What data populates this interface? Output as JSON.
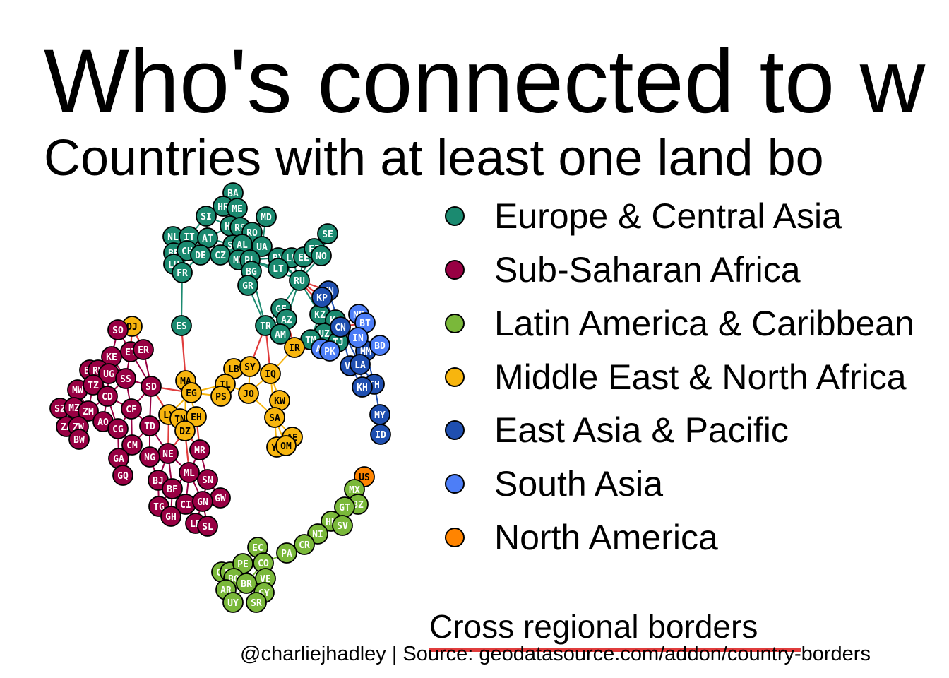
{
  "title": "Who's connected to w",
  "subtitle": "Countries with at least one land bo",
  "legend": [
    {
      "label": "Europe & Central Asia",
      "color": "#1b8a70"
    },
    {
      "label": "Sub-Saharan Africa",
      "color": "#980043"
    },
    {
      "label": "Latin America & Caribbean",
      "color": "#7ab83a"
    },
    {
      "label": "Middle East & North Africa",
      "color": "#f7b50e"
    },
    {
      "label": "East Asia & Pacific",
      "color": "#1f4fb0"
    },
    {
      "label": "South Asia",
      "color": "#4d7ef7"
    },
    {
      "label": "North America",
      "color": "#ff8400"
    }
  ],
  "edge_legend": {
    "label": "Cross regional borders",
    "color": "#e03c3c"
  },
  "caption": "@charliejhadley | Source: geodatasource.com/addon/country-borders",
  "within_edge_colors": {
    "eca": "#1b8a70",
    "ssa": "#980043",
    "lac": "#7ab83a",
    "mena": "#f7b50e",
    "eap": "#1f4fb0",
    "sa": "#4d7ef7",
    "na": "#ff8400"
  },
  "region_colors": {
    "eca": "#1b8a70",
    "ssa": "#980043",
    "lac": "#7ab83a",
    "mena": "#f7b50e",
    "eap": "#1f4fb0",
    "sa": "#4d7ef7",
    "na": "#ff8400"
  },
  "nodes": [
    {
      "id": "BA",
      "r": "eca"
    },
    {
      "id": "HR",
      "r": "eca"
    },
    {
      "id": "ME",
      "r": "eca"
    },
    {
      "id": "MD",
      "r": "eca"
    },
    {
      "id": "SI",
      "r": "eca"
    },
    {
      "id": "HU",
      "r": "eca"
    },
    {
      "id": "RS",
      "r": "eca"
    },
    {
      "id": "RO",
      "r": "eca"
    },
    {
      "id": "NL",
      "r": "eca"
    },
    {
      "id": "IT",
      "r": "eca"
    },
    {
      "id": "AT",
      "r": "eca"
    },
    {
      "id": "SK",
      "r": "eca"
    },
    {
      "id": "AL",
      "r": "eca"
    },
    {
      "id": "UA",
      "r": "eca"
    },
    {
      "id": "SE",
      "r": "eca"
    },
    {
      "id": "BE",
      "r": "eca"
    },
    {
      "id": "CH",
      "r": "eca"
    },
    {
      "id": "DE",
      "r": "eca"
    },
    {
      "id": "CZ",
      "r": "eca"
    },
    {
      "id": "MK",
      "r": "eca"
    },
    {
      "id": "PL",
      "r": "eca"
    },
    {
      "id": "BY",
      "r": "eca"
    },
    {
      "id": "LV",
      "r": "eca"
    },
    {
      "id": "EE",
      "r": "eca"
    },
    {
      "id": "FI",
      "r": "eca"
    },
    {
      "id": "NO",
      "r": "eca"
    },
    {
      "id": "LU",
      "r": "eca"
    },
    {
      "id": "FR",
      "r": "eca"
    },
    {
      "id": "BG",
      "r": "eca"
    },
    {
      "id": "LT",
      "r": "eca"
    },
    {
      "id": "GR",
      "r": "eca"
    },
    {
      "id": "RU",
      "r": "eca"
    },
    {
      "id": "ES",
      "r": "eca"
    },
    {
      "id": "GE",
      "r": "eca"
    },
    {
      "id": "AZ",
      "r": "eca"
    },
    {
      "id": "TR",
      "r": "eca"
    },
    {
      "id": "AM",
      "r": "eca"
    },
    {
      "id": "KZ",
      "r": "eca"
    },
    {
      "id": "KG",
      "r": "eca"
    },
    {
      "id": "UZ",
      "r": "eca"
    },
    {
      "id": "TJ",
      "r": "eca"
    },
    {
      "id": "TM",
      "r": "eca"
    },
    {
      "id": "MN",
      "r": "eap"
    },
    {
      "id": "KP",
      "r": "eap"
    },
    {
      "id": "CN",
      "r": "eap"
    },
    {
      "id": "MM",
      "r": "eap"
    },
    {
      "id": "VN",
      "r": "eap"
    },
    {
      "id": "LA",
      "r": "eap"
    },
    {
      "id": "TH",
      "r": "eap"
    },
    {
      "id": "KH",
      "r": "eap"
    },
    {
      "id": "MY",
      "r": "eap"
    },
    {
      "id": "ID",
      "r": "eap"
    },
    {
      "id": "NP",
      "r": "sa"
    },
    {
      "id": "BT",
      "r": "sa"
    },
    {
      "id": "IN",
      "r": "sa"
    },
    {
      "id": "BD",
      "r": "sa"
    },
    {
      "id": "AF",
      "r": "sa"
    },
    {
      "id": "PK",
      "r": "sa"
    },
    {
      "id": "IR",
      "r": "mena"
    },
    {
      "id": "DJ",
      "r": "mena"
    },
    {
      "id": "LB",
      "r": "mena"
    },
    {
      "id": "SY",
      "r": "mena"
    },
    {
      "id": "IQ",
      "r": "mena"
    },
    {
      "id": "MA",
      "r": "mena"
    },
    {
      "id": "EG",
      "r": "mena"
    },
    {
      "id": "IL",
      "r": "mena"
    },
    {
      "id": "PS",
      "r": "mena"
    },
    {
      "id": "JO",
      "r": "mena"
    },
    {
      "id": "KW",
      "r": "mena"
    },
    {
      "id": "LY",
      "r": "mena"
    },
    {
      "id": "TN",
      "r": "mena"
    },
    {
      "id": "EH",
      "r": "mena"
    },
    {
      "id": "DZ",
      "r": "mena"
    },
    {
      "id": "SA",
      "r": "mena"
    },
    {
      "id": "AE",
      "r": "mena"
    },
    {
      "id": "YE",
      "r": "mena"
    },
    {
      "id": "OM",
      "r": "mena"
    },
    {
      "id": "SO",
      "r": "ssa"
    },
    {
      "id": "ET",
      "r": "ssa"
    },
    {
      "id": "ER",
      "r": "ssa"
    },
    {
      "id": "KE",
      "r": "ssa"
    },
    {
      "id": "BI",
      "r": "ssa"
    },
    {
      "id": "RW",
      "r": "ssa"
    },
    {
      "id": "UG",
      "r": "ssa"
    },
    {
      "id": "SS",
      "r": "ssa"
    },
    {
      "id": "SD",
      "r": "ssa"
    },
    {
      "id": "MW",
      "r": "ssa"
    },
    {
      "id": "TZ",
      "r": "ssa"
    },
    {
      "id": "CD",
      "r": "ssa"
    },
    {
      "id": "SZ",
      "r": "ssa"
    },
    {
      "id": "MZ",
      "r": "ssa"
    },
    {
      "id": "ZM",
      "r": "ssa"
    },
    {
      "id": "CF",
      "r": "ssa"
    },
    {
      "id": "ZA",
      "r": "ssa"
    },
    {
      "id": "ZW",
      "r": "ssa"
    },
    {
      "id": "AO",
      "r": "ssa"
    },
    {
      "id": "CG",
      "r": "ssa"
    },
    {
      "id": "TD",
      "r": "ssa"
    },
    {
      "id": "BW",
      "r": "ssa"
    },
    {
      "id": "CM",
      "r": "ssa"
    },
    {
      "id": "NE",
      "r": "ssa"
    },
    {
      "id": "MR",
      "r": "ssa"
    },
    {
      "id": "GA",
      "r": "ssa"
    },
    {
      "id": "NG",
      "r": "ssa"
    },
    {
      "id": "ML",
      "r": "ssa"
    },
    {
      "id": "GQ",
      "r": "ssa"
    },
    {
      "id": "SN",
      "r": "ssa"
    },
    {
      "id": "BJ",
      "r": "ssa"
    },
    {
      "id": "BF",
      "r": "ssa"
    },
    {
      "id": "GW",
      "r": "ssa"
    },
    {
      "id": "TG",
      "r": "ssa"
    },
    {
      "id": "CI",
      "r": "ssa"
    },
    {
      "id": "GN",
      "r": "ssa"
    },
    {
      "id": "GH",
      "r": "ssa"
    },
    {
      "id": "LR",
      "r": "ssa"
    },
    {
      "id": "SL",
      "r": "ssa"
    },
    {
      "id": "US",
      "r": "na"
    },
    {
      "id": "MX",
      "r": "lac"
    },
    {
      "id": "BZ",
      "r": "lac"
    },
    {
      "id": "GT",
      "r": "lac"
    },
    {
      "id": "HN",
      "r": "lac"
    },
    {
      "id": "SV",
      "r": "lac"
    },
    {
      "id": "NI",
      "r": "lac"
    },
    {
      "id": "CR",
      "r": "lac"
    },
    {
      "id": "PA",
      "r": "lac"
    },
    {
      "id": "EC",
      "r": "lac"
    },
    {
      "id": "CL",
      "r": "lac"
    },
    {
      "id": "PY",
      "r": "lac"
    },
    {
      "id": "PE",
      "r": "lac"
    },
    {
      "id": "CO",
      "r": "lac"
    },
    {
      "id": "BO",
      "r": "lac"
    },
    {
      "id": "VE",
      "r": "lac"
    },
    {
      "id": "AR",
      "r": "lac"
    },
    {
      "id": "BR",
      "r": "lac"
    },
    {
      "id": "GY",
      "r": "lac"
    },
    {
      "id": "UY",
      "r": "lac"
    },
    {
      "id": "SR",
      "r": "lac"
    }
  ],
  "edges": [
    [
      "BA",
      "HR"
    ],
    [
      "BA",
      "ME"
    ],
    [
      "HR",
      "ME"
    ],
    [
      "HR",
      "SI"
    ],
    [
      "HR",
      "HU"
    ],
    [
      "HR",
      "RS"
    ],
    [
      "ME",
      "RS"
    ],
    [
      "ME",
      "AL"
    ],
    [
      "SI",
      "IT"
    ],
    [
      "SI",
      "AT"
    ],
    [
      "SI",
      "HU"
    ],
    [
      "HU",
      "AT"
    ],
    [
      "HU",
      "SK"
    ],
    [
      "HU",
      "RO"
    ],
    [
      "HU",
      "RS"
    ],
    [
      "HU",
      "UA"
    ],
    [
      "RS",
      "RO"
    ],
    [
      "RS",
      "BG"
    ],
    [
      "RS",
      "MK"
    ],
    [
      "RO",
      "MD"
    ],
    [
      "RO",
      "UA"
    ],
    [
      "RO",
      "BG"
    ],
    [
      "MD",
      "UA"
    ],
    [
      "NL",
      "BE"
    ],
    [
      "NL",
      "DE"
    ],
    [
      "IT",
      "CH"
    ],
    [
      "IT",
      "AT"
    ],
    [
      "IT",
      "FR"
    ],
    [
      "AT",
      "DE"
    ],
    [
      "AT",
      "CH"
    ],
    [
      "AT",
      "CZ"
    ],
    [
      "AT",
      "SK"
    ],
    [
      "SK",
      "CZ"
    ],
    [
      "SK",
      "PL"
    ],
    [
      "SK",
      "UA"
    ],
    [
      "AL",
      "MK"
    ],
    [
      "AL",
      "GR"
    ],
    [
      "UA",
      "PL"
    ],
    [
      "UA",
      "BY"
    ],
    [
      "UA",
      "RU"
    ],
    [
      "SE",
      "FI"
    ],
    [
      "SE",
      "NO"
    ],
    [
      "BE",
      "DE"
    ],
    [
      "BE",
      "FR"
    ],
    [
      "BE",
      "LU"
    ],
    [
      "CH",
      "DE"
    ],
    [
      "CH",
      "FR"
    ],
    [
      "DE",
      "CZ"
    ],
    [
      "DE",
      "PL"
    ],
    [
      "DE",
      "FR"
    ],
    [
      "DE",
      "LU"
    ],
    [
      "CZ",
      "PL"
    ],
    [
      "MK",
      "BG"
    ],
    [
      "MK",
      "GR"
    ],
    [
      "PL",
      "BY"
    ],
    [
      "PL",
      "LT"
    ],
    [
      "PL",
      "RU"
    ],
    [
      "BY",
      "LV"
    ],
    [
      "BY",
      "LT"
    ],
    [
      "BY",
      "RU"
    ],
    [
      "LV",
      "EE"
    ],
    [
      "LV",
      "LT"
    ],
    [
      "LV",
      "RU"
    ],
    [
      "EE",
      "RU"
    ],
    [
      "FI",
      "NO"
    ],
    [
      "FI",
      "RU"
    ],
    [
      "NO",
      "RU"
    ],
    [
      "LU",
      "FR"
    ],
    [
      "FR",
      "ES"
    ],
    [
      "BG",
      "GR"
    ],
    [
      "BG",
      "TR"
    ],
    [
      "GR",
      "TR"
    ],
    [
      "RU",
      "GE"
    ],
    [
      "RU",
      "AZ"
    ],
    [
      "RU",
      "KZ"
    ],
    [
      "RU",
      "MN"
    ],
    [
      "RU",
      "KP"
    ],
    [
      "RU",
      "CN"
    ],
    [
      "GE",
      "AZ"
    ],
    [
      "GE",
      "TR"
    ],
    [
      "GE",
      "AM"
    ],
    [
      "AZ",
      "AM"
    ],
    [
      "AZ",
      "TR"
    ],
    [
      "AZ",
      "IR"
    ],
    [
      "TR",
      "AM"
    ],
    [
      "TR",
      "IR"
    ],
    [
      "TR",
      "SY"
    ],
    [
      "TR",
      "IQ"
    ],
    [
      "AM",
      "IR"
    ],
    [
      "KZ",
      "KG"
    ],
    [
      "KZ",
      "UZ"
    ],
    [
      "KZ",
      "TM"
    ],
    [
      "KZ",
      "CN"
    ],
    [
      "KG",
      "UZ"
    ],
    [
      "KG",
      "TJ"
    ],
    [
      "KG",
      "CN"
    ],
    [
      "UZ",
      "TJ"
    ],
    [
      "UZ",
      "TM"
    ],
    [
      "UZ",
      "AF"
    ],
    [
      "TJ",
      "AF"
    ],
    [
      "TJ",
      "CN"
    ],
    [
      "TM",
      "AF"
    ],
    [
      "TM",
      "IR"
    ],
    [
      "MN",
      "CN"
    ],
    [
      "KP",
      "CN"
    ],
    [
      "CN",
      "NP"
    ],
    [
      "CN",
      "BT"
    ],
    [
      "CN",
      "IN"
    ],
    [
      "CN",
      "MM"
    ],
    [
      "CN",
      "VN"
    ],
    [
      "CN",
      "LA"
    ],
    [
      "CN",
      "AF"
    ],
    [
      "CN",
      "PK"
    ],
    [
      "NP",
      "IN"
    ],
    [
      "BT",
      "IN"
    ],
    [
      "IN",
      "BD"
    ],
    [
      "IN",
      "MM"
    ],
    [
      "IN",
      "PK"
    ],
    [
      "BD",
      "MM"
    ],
    [
      "MM",
      "LA"
    ],
    [
      "MM",
      "TH"
    ],
    [
      "VN",
      "LA"
    ],
    [
      "VN",
      "KH"
    ],
    [
      "LA",
      "TH"
    ],
    [
      "LA",
      "KH"
    ],
    [
      "TH",
      "KH"
    ],
    [
      "TH",
      "MY"
    ],
    [
      "MY",
      "ID"
    ],
    [
      "AF",
      "PK"
    ],
    [
      "AF",
      "IR"
    ],
    [
      "PK",
      "IR"
    ],
    [
      "IR",
      "IQ"
    ],
    [
      "ES",
      "MA"
    ],
    [
      "MA",
      "DZ"
    ],
    [
      "MA",
      "EH"
    ],
    [
      "EG",
      "IL"
    ],
    [
      "EG",
      "PS"
    ],
    [
      "EG",
      "LY"
    ],
    [
      "EG",
      "SD"
    ],
    [
      "LB",
      "SY"
    ],
    [
      "LB",
      "IL"
    ],
    [
      "SY",
      "IQ"
    ],
    [
      "SY",
      "JO"
    ],
    [
      "SY",
      "IL"
    ],
    [
      "IL",
      "JO"
    ],
    [
      "IL",
      "PS"
    ],
    [
      "JO",
      "IQ"
    ],
    [
      "JO",
      "SA"
    ],
    [
      "IQ",
      "KW"
    ],
    [
      "IQ",
      "SA"
    ],
    [
      "KW",
      "SA"
    ],
    [
      "SA",
      "YE"
    ],
    [
      "SA",
      "OM"
    ],
    [
      "SA",
      "AE"
    ],
    [
      "YE",
      "OM"
    ],
    [
      "AE",
      "OM"
    ],
    [
      "LY",
      "TN"
    ],
    [
      "LY",
      "DZ"
    ],
    [
      "LY",
      "TD"
    ],
    [
      "LY",
      "NE"
    ],
    [
      "LY",
      "SD"
    ],
    [
      "TN",
      "DZ"
    ],
    [
      "DZ",
      "EH"
    ],
    [
      "DZ",
      "NE"
    ],
    [
      "DZ",
      "ML"
    ],
    [
      "DZ",
      "MR"
    ],
    [
      "EH",
      "MR"
    ],
    [
      "DJ",
      "SO"
    ],
    [
      "DJ",
      "ET"
    ],
    [
      "DJ",
      "ER"
    ],
    [
      "SO",
      "ET"
    ],
    [
      "SO",
      "KE"
    ],
    [
      "ET",
      "ER"
    ],
    [
      "ET",
      "KE"
    ],
    [
      "ET",
      "SS"
    ],
    [
      "ET",
      "SD"
    ],
    [
      "ER",
      "SD"
    ],
    [
      "KE",
      "UG"
    ],
    [
      "KE",
      "SS"
    ],
    [
      "KE",
      "TZ"
    ],
    [
      "BI",
      "RW"
    ],
    [
      "BI",
      "TZ"
    ],
    [
      "BI",
      "CD"
    ],
    [
      "RW",
      "UG"
    ],
    [
      "RW",
      "TZ"
    ],
    [
      "RW",
      "CD"
    ],
    [
      "UG",
      "SS"
    ],
    [
      "UG",
      "TZ"
    ],
    [
      "UG",
      "CD"
    ],
    [
      "SS",
      "SD"
    ],
    [
      "SS",
      "CD"
    ],
    [
      "SS",
      "CF"
    ],
    [
      "SD",
      "CF"
    ],
    [
      "SD",
      "TD"
    ],
    [
      "MW",
      "TZ"
    ],
    [
      "MW",
      "MZ"
    ],
    [
      "MW",
      "ZM"
    ],
    [
      "TZ",
      "MZ"
    ],
    [
      "TZ",
      "ZM"
    ],
    [
      "TZ",
      "CD"
    ],
    [
      "CD",
      "ZM"
    ],
    [
      "CD",
      "AO"
    ],
    [
      "CD",
      "CG"
    ],
    [
      "CD",
      "CF"
    ],
    [
      "SZ",
      "MZ"
    ],
    [
      "SZ",
      "ZA"
    ],
    [
      "MZ",
      "ZA"
    ],
    [
      "MZ",
      "ZW"
    ],
    [
      "MZ",
      "ZM"
    ],
    [
      "ZM",
      "ZW"
    ],
    [
      "ZM",
      "AO"
    ],
    [
      "ZA",
      "ZW"
    ],
    [
      "ZA",
      "BW"
    ],
    [
      "ZW",
      "BW"
    ],
    [
      "AO",
      "CG"
    ],
    [
      "CG",
      "CF"
    ],
    [
      "CG",
      "CM"
    ],
    [
      "CG",
      "GA"
    ],
    [
      "CF",
      "TD"
    ],
    [
      "CF",
      "CM"
    ],
    [
      "TD",
      "CM"
    ],
    [
      "TD",
      "NE"
    ],
    [
      "TD",
      "NG"
    ],
    [
      "CM",
      "NG"
    ],
    [
      "CM",
      "GA"
    ],
    [
      "CM",
      "GQ"
    ],
    [
      "GA",
      "GQ"
    ],
    [
      "NE",
      "NG"
    ],
    [
      "NE",
      "ML"
    ],
    [
      "NE",
      "BJ"
    ],
    [
      "NE",
      "BF"
    ],
    [
      "NG",
      "BJ"
    ],
    [
      "ML",
      "MR"
    ],
    [
      "ML",
      "SN"
    ],
    [
      "ML",
      "BF"
    ],
    [
      "ML",
      "CI"
    ],
    [
      "ML",
      "GN"
    ],
    [
      "MR",
      "SN"
    ],
    [
      "SN",
      "GN"
    ],
    [
      "SN",
      "GW"
    ],
    [
      "BJ",
      "BF"
    ],
    [
      "BJ",
      "TG"
    ],
    [
      "BF",
      "TG"
    ],
    [
      "BF",
      "CI"
    ],
    [
      "BF",
      "GH"
    ],
    [
      "GW",
      "GN"
    ],
    [
      "TG",
      "GH"
    ],
    [
      "CI",
      "GN"
    ],
    [
      "CI",
      "GH"
    ],
    [
      "CI",
      "LR"
    ],
    [
      "GN",
      "LR"
    ],
    [
      "GN",
      "SL"
    ],
    [
      "LR",
      "SL"
    ],
    [
      "US",
      "MX"
    ],
    [
      "MX",
      "BZ"
    ],
    [
      "MX",
      "GT"
    ],
    [
      "BZ",
      "GT"
    ],
    [
      "GT",
      "HN"
    ],
    [
      "GT",
      "SV"
    ],
    [
      "HN",
      "SV"
    ],
    [
      "HN",
      "NI"
    ],
    [
      "NI",
      "CR"
    ],
    [
      "CR",
      "PA"
    ],
    [
      "PA",
      "CO"
    ],
    [
      "EC",
      "CO"
    ],
    [
      "EC",
      "PE"
    ],
    [
      "CL",
      "PE"
    ],
    [
      "CL",
      "BO"
    ],
    [
      "CL",
      "AR"
    ],
    [
      "PY",
      "BO"
    ],
    [
      "PY",
      "AR"
    ],
    [
      "PY",
      "BR"
    ],
    [
      "PE",
      "CO"
    ],
    [
      "PE",
      "BO"
    ],
    [
      "PE",
      "BR"
    ],
    [
      "CO",
      "VE"
    ],
    [
      "CO",
      "BR"
    ],
    [
      "BO",
      "AR"
    ],
    [
      "BO",
      "BR"
    ],
    [
      "VE",
      "BR"
    ],
    [
      "VE",
      "GY"
    ],
    [
      "AR",
      "BR"
    ],
    [
      "AR",
      "UY"
    ],
    [
      "BR",
      "UY"
    ],
    [
      "BR",
      "GY"
    ],
    [
      "BR",
      "SR"
    ],
    [
      "GY",
      "SR"
    ]
  ]
}
